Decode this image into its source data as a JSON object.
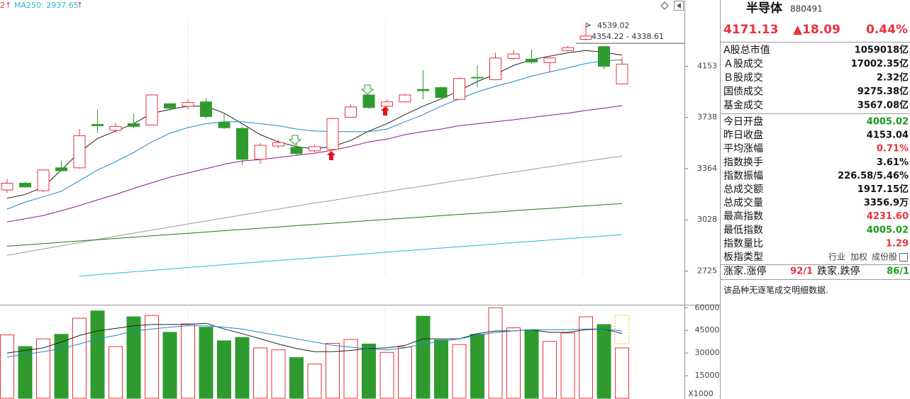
{
  "header": [
    "2↑",
    "MA250: 2937.65",
    "↑"
  ],
  "chart_data": [
    {
      "type": "candlestick",
      "open": [
        3220,
        3265,
        3215,
        3370,
        3370,
        3685,
        3640,
        3690,
        3680,
        3845,
        3825,
        3860,
        3700,
        3655,
        3430,
        3525,
        3515,
        3490,
        3500,
        3740,
        3915,
        3825,
        3860,
        3960,
        3975,
        3880,
        4060,
        4040,
        4220,
        4215,
        4185,
        4290,
        4390,
        4325,
        4005.02
      ],
      "high": [
        3295,
        3275,
        3360,
        3420,
        3650,
        3800,
        3695,
        3770,
        3920,
        3850,
        3880,
        3890,
        3775,
        3665,
        3545,
        3570,
        3540,
        3535,
        3735,
        3840,
        3920,
        3880,
        3925,
        4120,
        3980,
        4060,
        4160,
        4270,
        4295,
        4300,
        4230,
        4330,
        4539.02,
        4330,
        4231.6
      ],
      "low": [
        3200,
        3235,
        3205,
        3345,
        3365,
        3620,
        3625,
        3655,
        3675,
        3790,
        3800,
        3730,
        3650,
        3390,
        3400,
        3510,
        3460,
        3480,
        3495,
        3735,
        3805,
        3810,
        3855,
        3880,
        3890,
        3875,
        3975,
        4035,
        4210,
        4175,
        4100,
        4280,
        4380,
        4125,
        4005.02
      ],
      "close": [
        3265,
        3240,
        3355,
        3350,
        3600,
        3675,
        3670,
        3670,
        3915,
        3810,
        3855,
        3745,
        3660,
        3430,
        3530,
        3550,
        3470,
        3520,
        3730,
        3820,
        3815,
        3860,
        3915,
        3950,
        3895,
        4050,
        4055,
        4225,
        4260,
        4190,
        4225,
        4315,
        4420,
        4153.04,
        4171.13
      ],
      "up_color": "#e8323c",
      "down_color": "#2f9b2f",
      "log_scale": true,
      "ylim": [
        2550,
        4760
      ],
      "yticks": [
        4153,
        3738,
        3364,
        3028,
        2725
      ],
      "series": [
        {
          "color": "#222222",
          "values": [
            3165,
            3190,
            3240,
            3355,
            3480,
            3580,
            3635,
            3690,
            3770,
            3800,
            3826,
            3826,
            3771,
            3690,
            3608,
            3555,
            3520,
            3504,
            3522,
            3565,
            3635,
            3690,
            3760,
            3826,
            3883,
            3950,
            4025,
            4085,
            4160,
            4210,
            4240,
            4270,
            4290,
            4275,
            4250
          ]
        },
        {
          "color": "#1e88c8",
          "values": [
            3096,
            3141,
            3175,
            3211,
            3282,
            3355,
            3413,
            3478,
            3555,
            3618,
            3661,
            3690,
            3705,
            3705,
            3690,
            3675,
            3650,
            3635,
            3630,
            3630,
            3630,
            3650,
            3705,
            3760,
            3826,
            3883,
            3940,
            3985,
            4025,
            4070,
            4105,
            4140,
            4177,
            4200,
            4208
          ]
        },
        {
          "color": "#8a1a8a",
          "values": [
            3015,
            3035,
            3055,
            3085,
            3118,
            3155,
            3190,
            3230,
            3268,
            3306,
            3335,
            3364,
            3394,
            3418,
            3428,
            3443,
            3458,
            3473,
            3494,
            3522,
            3555,
            3575,
            3608,
            3630,
            3650,
            3675,
            3690,
            3705,
            3720,
            3738,
            3755,
            3771,
            3792,
            3810,
            3830
          ]
        },
        {
          "color": "#999999",
          "values": [
            2814,
            2833,
            2852,
            2870,
            2889,
            2908,
            2927,
            2946,
            2964,
            2983,
            3002,
            3021,
            3040,
            3058,
            3077,
            3096,
            3115,
            3134,
            3152,
            3171,
            3190,
            3209,
            3228,
            3246,
            3265,
            3284,
            3303,
            3322,
            3340,
            3359,
            3378,
            3397,
            3416,
            3434,
            3453
          ]
        },
        {
          "color": "#1a7a1a",
          "values": [
            2868,
            2876,
            2883,
            2891,
            2899,
            2907,
            2914,
            2922,
            2930,
            2938,
            2945,
            2953,
            2961,
            2969,
            2976,
            2984,
            2992,
            3000,
            3007,
            3015,
            3023,
            3031,
            3038,
            3046,
            3054,
            3062,
            3069,
            3077,
            3085,
            3093,
            3100,
            3108,
            3116,
            3124,
            3131
          ]
        },
        {
          "color": "#2ab8d0",
          "values": [
            null,
            null,
            null,
            null,
            2697,
            2705,
            2713,
            2721,
            2729,
            2737,
            2745,
            2753,
            2761,
            2769,
            2777,
            2785,
            2793,
            2801,
            2809,
            2817,
            2825,
            2833,
            2841,
            2849,
            2857,
            2865,
            2873,
            2881,
            2889,
            2897,
            2905,
            2913,
            2921,
            2929,
            2937.65
          ]
        }
      ],
      "annotations": [
        {
          "text": "4539.02",
          "value": 4539.02
        },
        {
          "text": "4354.22 - 4338.61",
          "value": 4354.22
        }
      ]
    },
    {
      "type": "bar",
      "values": [
        42000,
        34300,
        39400,
        42400,
        53100,
        57900,
        34300,
        54000,
        54900,
        43700,
        49300,
        47100,
        38100,
        40300,
        33400,
        32100,
        27000,
        22700,
        36400,
        39000,
        36000,
        30400,
        33900,
        54400,
        38600,
        35600,
        42400,
        60000,
        46700,
        45400,
        37700,
        43300,
        54000,
        48900,
        33400
      ],
      "ylim": [
        0,
        62000
      ],
      "yticks": [
        60000,
        45000,
        30000,
        15000
      ],
      "unit": "X1000",
      "series": [
        {
          "color": "#222222",
          "values": [
            30000,
            31700,
            33400,
            37300,
            41600,
            44600,
            46300,
            48000,
            48900,
            48900,
            48900,
            49700,
            45900,
            42900,
            39400,
            36000,
            33000,
            30900,
            30900,
            31700,
            33000,
            33400,
            35100,
            39400,
            39400,
            39400,
            42900,
            44600,
            44600,
            45400,
            43700,
            43700,
            45400,
            45900,
            42900
          ]
        },
        {
          "color": "#1e88c8",
          "values": [
            27400,
            29100,
            30900,
            33000,
            36000,
            39400,
            41600,
            44600,
            45900,
            47100,
            48000,
            48000,
            47100,
            45900,
            43700,
            41600,
            39400,
            37300,
            35100,
            33900,
            32600,
            32100,
            33400,
            36000,
            37700,
            39400,
            41600,
            43700,
            44600,
            45400,
            45400,
            45400,
            45900,
            45900,
            44600
          ]
        }
      ]
    }
  ],
  "panel": {
    "name": "半导体",
    "code": "880491",
    "price": "4171.13",
    "change": "▲18.09",
    "pct": "0.44%",
    "rows": [
      {
        "label": "A股总市值",
        "value": "1059018亿"
      },
      {
        "label": "Ａ股成交",
        "value": "17002.35亿"
      },
      {
        "label": "Ｂ股成交",
        "value": "2.32亿"
      },
      {
        "label": "国债成交",
        "value": "9275.38亿"
      },
      {
        "label": "基金成交",
        "value": "3567.08亿"
      },
      {
        "label": "今日开盘",
        "value": "4005.02",
        "color": "#1a9a1a"
      },
      {
        "label": "昨日收盘",
        "value": "4153.04"
      },
      {
        "label": "平均涨幅",
        "value": "0.71%",
        "color": "#e8323c"
      },
      {
        "label": "指数换手",
        "value": "3.61%"
      },
      {
        "label": "指数振幅",
        "value": "226.58/5.46%"
      },
      {
        "label": "总成交额",
        "value": "1917.15亿"
      },
      {
        "label": "总成交量",
        "value": "3356.9万"
      },
      {
        "label": "最高指数",
        "value": "4231.60",
        "color": "#e8323c"
      },
      {
        "label": "最低指数",
        "value": "4005.02",
        "color": "#1a9a1a"
      },
      {
        "label": "指数量比",
        "value": "1.29",
        "color": "#e8323c"
      }
    ],
    "board": {
      "label": "板指类型",
      "options": [
        "行业",
        "加权",
        "成份股"
      ]
    },
    "limits": [
      "涨家.涨停",
      "92/1",
      "跌家.跌停",
      "86/1"
    ],
    "note": "该品种无逐笔成交明细数据."
  }
}
